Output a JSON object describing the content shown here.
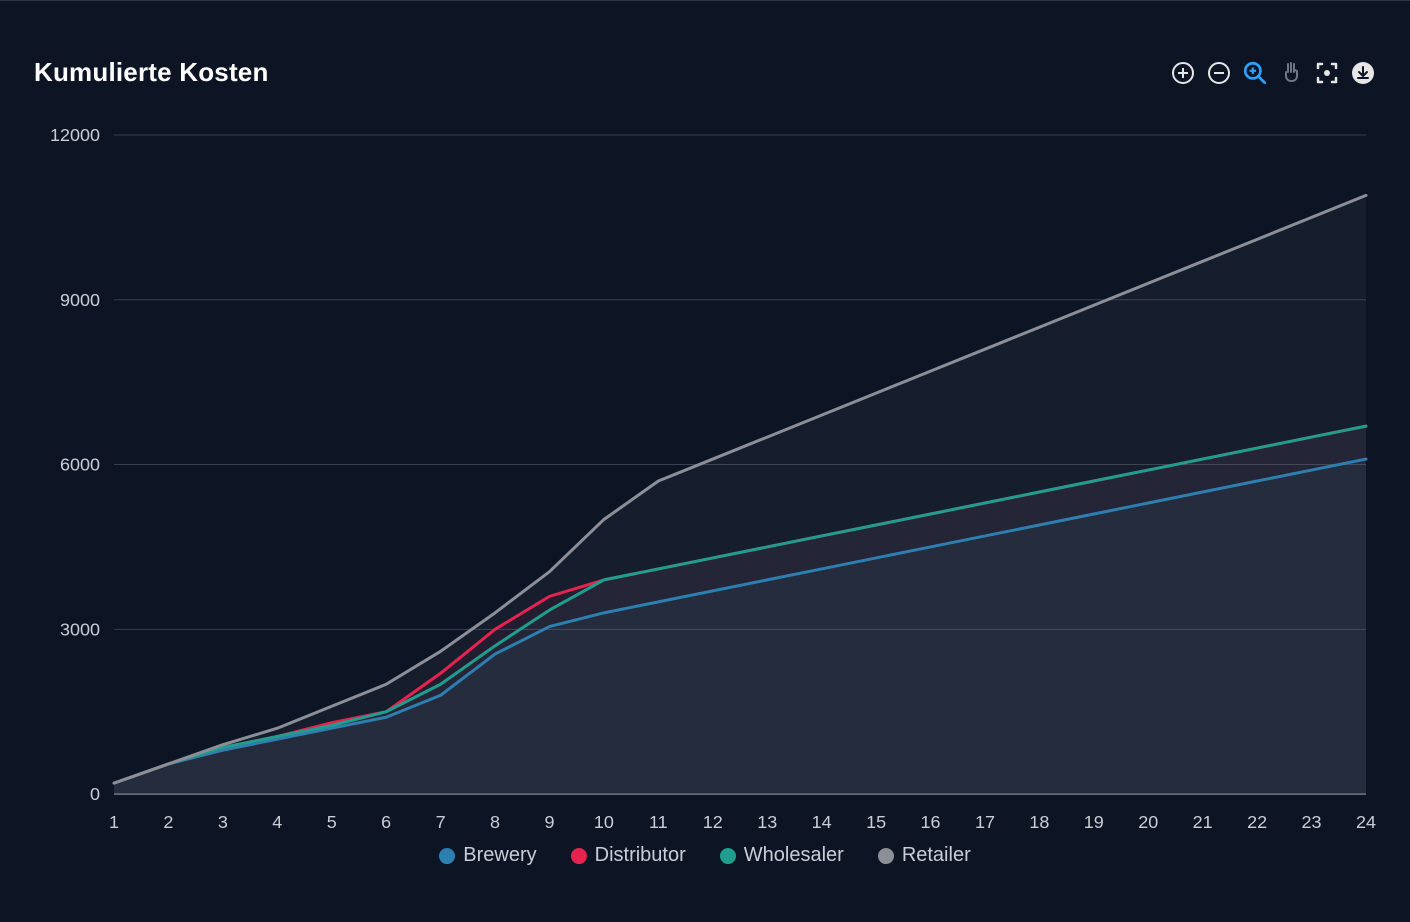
{
  "chart": {
    "type": "area-line",
    "title": "Kumulierte Kosten",
    "background_color": "#0d1525",
    "grid_color": "#374050",
    "axis_color": "#6f7785",
    "text_color": "#c9ced6",
    "title_color": "#ffffff",
    "title_fontsize": 26,
    "tick_fontsize": 18,
    "legend_fontsize": 20,
    "line_width": 3,
    "area_opacity": 0.07,
    "x_values": [
      1,
      2,
      3,
      4,
      5,
      6,
      7,
      8,
      9,
      10,
      11,
      12,
      13,
      14,
      15,
      16,
      17,
      18,
      19,
      20,
      21,
      22,
      23,
      24
    ],
    "ylim": [
      0,
      12000
    ],
    "y_ticks": [
      0,
      3000,
      6000,
      9000,
      12000
    ],
    "series": [
      {
        "name": "Brewery",
        "color": "#2d7fb0",
        "data": [
          200,
          550,
          800,
          1000,
          1200,
          1400,
          1800,
          2550,
          3050,
          3300,
          3500,
          3700,
          3900,
          4100,
          4300,
          4500,
          4700,
          4900,
          5100,
          5300,
          5500,
          5700,
          5900,
          6100
        ]
      },
      {
        "name": "Distributor",
        "color": "#e6234f",
        "data": [
          200,
          550,
          850,
          1050,
          1300,
          1500,
          2200,
          3000,
          3600,
          3900,
          4100,
          4300,
          4500,
          4700,
          4900,
          5100,
          5300,
          5500,
          5700,
          5900,
          6100,
          6300,
          6500,
          6700
        ]
      },
      {
        "name": "Wholesaler",
        "color": "#1f9e8e",
        "data": [
          200,
          550,
          850,
          1050,
          1250,
          1500,
          2000,
          2700,
          3350,
          3900,
          4100,
          4300,
          4500,
          4700,
          4900,
          5100,
          5300,
          5500,
          5700,
          5900,
          6100,
          6300,
          6500,
          6700
        ]
      },
      {
        "name": "Retailer",
        "color": "#8c8f97",
        "data": [
          200,
          550,
          900,
          1200,
          1600,
          2000,
          2600,
          3300,
          4050,
          5000,
          5700,
          6100,
          6500,
          6900,
          7300,
          7700,
          8100,
          8500,
          8900,
          9300,
          9700,
          10100,
          10500,
          10900
        ]
      }
    ],
    "toolbar": {
      "zoom_in": {
        "label": "Zoom In",
        "active": false
      },
      "zoom_out": {
        "label": "Zoom Out",
        "active": false
      },
      "selection_zoom": {
        "label": "Selection Zoom",
        "active": true,
        "active_color": "#2ea0ff"
      },
      "pan": {
        "label": "Panning",
        "active": false,
        "muted": true
      },
      "reset": {
        "label": "Reset Zoom",
        "active": false
      },
      "download": {
        "label": "Download SVG",
        "active": false
      }
    },
    "toolbar_icon_color": "#e6e6e6",
    "toolbar_muted_color": "#6f7785"
  }
}
